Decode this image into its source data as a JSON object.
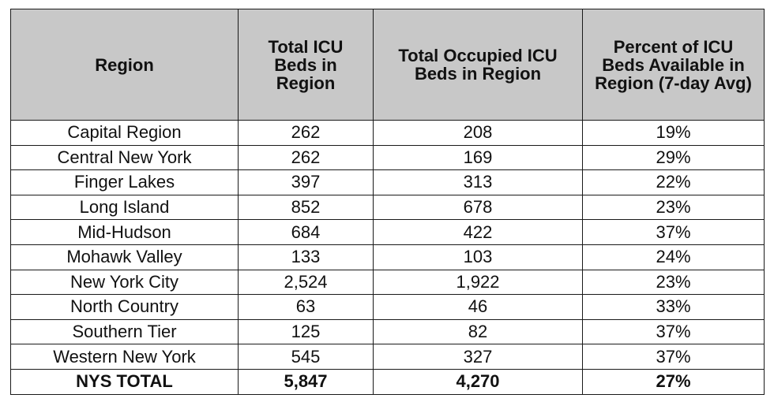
{
  "table": {
    "headers": [
      "Region",
      "Total ICU Beds in Region",
      "Total Occupied ICU Beds in Region",
      "Percent of ICU Beds Available in Region (7-day Avg)"
    ],
    "rows": [
      [
        "Capital Region",
        "262",
        "208",
        "19%"
      ],
      [
        "Central New York",
        "262",
        "169",
        "29%"
      ],
      [
        "Finger Lakes",
        "397",
        "313",
        "22%"
      ],
      [
        "Long Island",
        "852",
        "678",
        "23%"
      ],
      [
        "Mid-Hudson",
        "684",
        "422",
        "37%"
      ],
      [
        "Mohawk Valley",
        "133",
        "103",
        "24%"
      ],
      [
        "New York City",
        "2,524",
        "1,922",
        "23%"
      ],
      [
        "North Country",
        "63",
        "46",
        "33%"
      ],
      [
        "Southern Tier",
        "125",
        "82",
        "37%"
      ],
      [
        "Western New York",
        "545",
        "327",
        "37%"
      ]
    ],
    "total": [
      "NYS TOTAL",
      "5,847",
      "4,270",
      "27%"
    ]
  }
}
